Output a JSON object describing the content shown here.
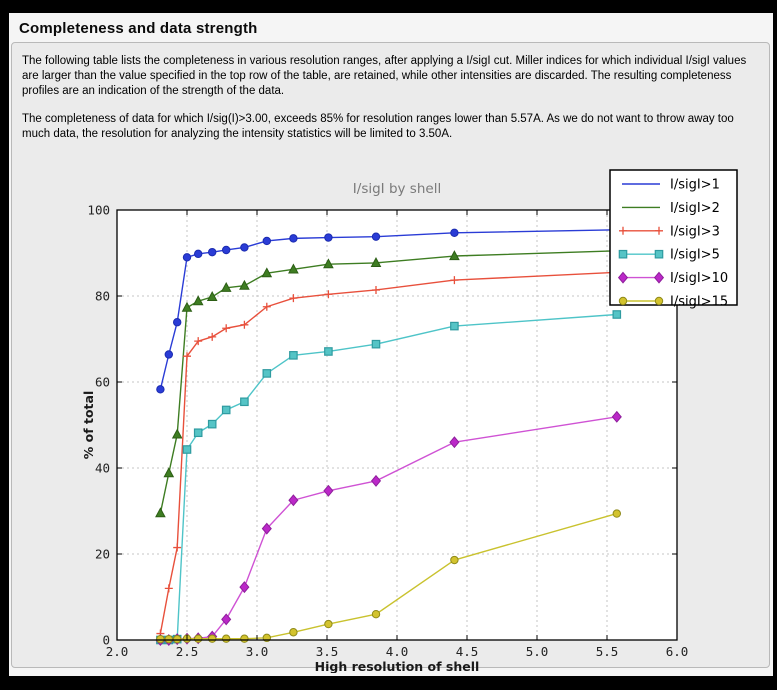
{
  "page": {
    "title": "Completeness and data strength"
  },
  "panel": {
    "paragraph1": "The following table lists the completeness in various resolution ranges, after applying a I/sigI cut. Miller indices for which individual I/sigI values are larger than the value specified in the top row of the table, are retained, while other intensities are discarded. The resulting completeness profiles are an indication of the strength of the data.",
    "paragraph2": "The completeness of data for which I/sig(I)>3.00, exceeds  85% for resolution ranges lower than 5.57A. As we do not want to throw away too much data, the resolution for analyzing the intensity statistics will be limited to 3.50A."
  },
  "chart_data": {
    "type": "line",
    "title": "I/sigI by shell",
    "xlabel": "High resolution of shell",
    "ylabel": "% of total",
    "xlim": [
      2.0,
      6.0
    ],
    "ylim": [
      0,
      100
    ],
    "xticks": [
      2.0,
      2.5,
      3.0,
      3.5,
      4.0,
      4.5,
      5.0,
      5.5,
      6.0
    ],
    "yticks": [
      0,
      20,
      40,
      60,
      80,
      100
    ],
    "grid": true,
    "grid_color": "#c6c6c6",
    "plot_bg": "#ffffff",
    "figure_bg": "#ebebeb",
    "title_color": "#7a7a7a",
    "tick_color": "#222222",
    "legend_position": "upper-right-overlapping",
    "x": [
      2.31,
      2.37,
      2.43,
      2.5,
      2.58,
      2.68,
      2.78,
      2.91,
      3.07,
      3.26,
      3.51,
      3.85,
      4.41,
      5.57
    ],
    "series": [
      {
        "name": "I/sigI>1",
        "color": "#2a3cd6",
        "marker": "circle",
        "marker_fill": "#2a3cd6",
        "marker_edge": "#1b2bb0",
        "legend_marker": false,
        "values": [
          58.3,
          66.4,
          73.9,
          89.0,
          89.8,
          90.2,
          90.7,
          91.3,
          92.8,
          93.4,
          93.6,
          93.8,
          94.7,
          95.4
        ]
      },
      {
        "name": "I/sigI>2",
        "color": "#3e7d22",
        "marker": "triangle",
        "marker_fill": "#3e7d22",
        "marker_edge": "#2c5e15",
        "legend_marker": false,
        "values": [
          29.5,
          38.8,
          47.8,
          77.3,
          78.8,
          79.8,
          81.9,
          82.4,
          85.3,
          86.2,
          87.4,
          87.7,
          89.3,
          90.5
        ]
      },
      {
        "name": "I/sigI>3",
        "color": "#e8503c",
        "marker": "plus",
        "marker_fill": "none",
        "marker_edge": "#e8503c",
        "legend_marker": true,
        "values": [
          1.5,
          12.0,
          21.5,
          66.0,
          69.5,
          70.5,
          72.5,
          73.3,
          77.5,
          79.5,
          80.4,
          81.4,
          83.7,
          85.5
        ]
      },
      {
        "name": "I/sigI>5",
        "color": "#4ec4c8",
        "marker": "square",
        "marker_fill": "#55c4c6",
        "marker_edge": "#2f9ba0",
        "legend_marker": true,
        "values": [
          0.0,
          0.0,
          0.2,
          44.3,
          48.2,
          50.2,
          53.5,
          55.4,
          62.0,
          66.2,
          67.1,
          68.8,
          73.0,
          75.7
        ]
      },
      {
        "name": "I/sigI>10",
        "color": "#cf52d4",
        "marker": "diamond",
        "marker_fill": "#bb28c8",
        "marker_edge": "#8e1f9b",
        "legend_marker": true,
        "values": [
          0.0,
          0.0,
          0.2,
          0.3,
          0.4,
          0.8,
          4.8,
          12.3,
          25.9,
          32.5,
          34.7,
          37.0,
          46.0,
          51.9
        ]
      },
      {
        "name": "I/sigI>15",
        "color": "#c9c22e",
        "marker": "circle",
        "marker_fill": "#d3c32e",
        "marker_edge": "#8f8a1a",
        "legend_marker": true,
        "values": [
          0.2,
          0.2,
          0.2,
          0.3,
          0.3,
          0.3,
          0.3,
          0.3,
          0.5,
          1.8,
          3.7,
          6.0,
          18.6,
          29.4
        ]
      }
    ]
  }
}
